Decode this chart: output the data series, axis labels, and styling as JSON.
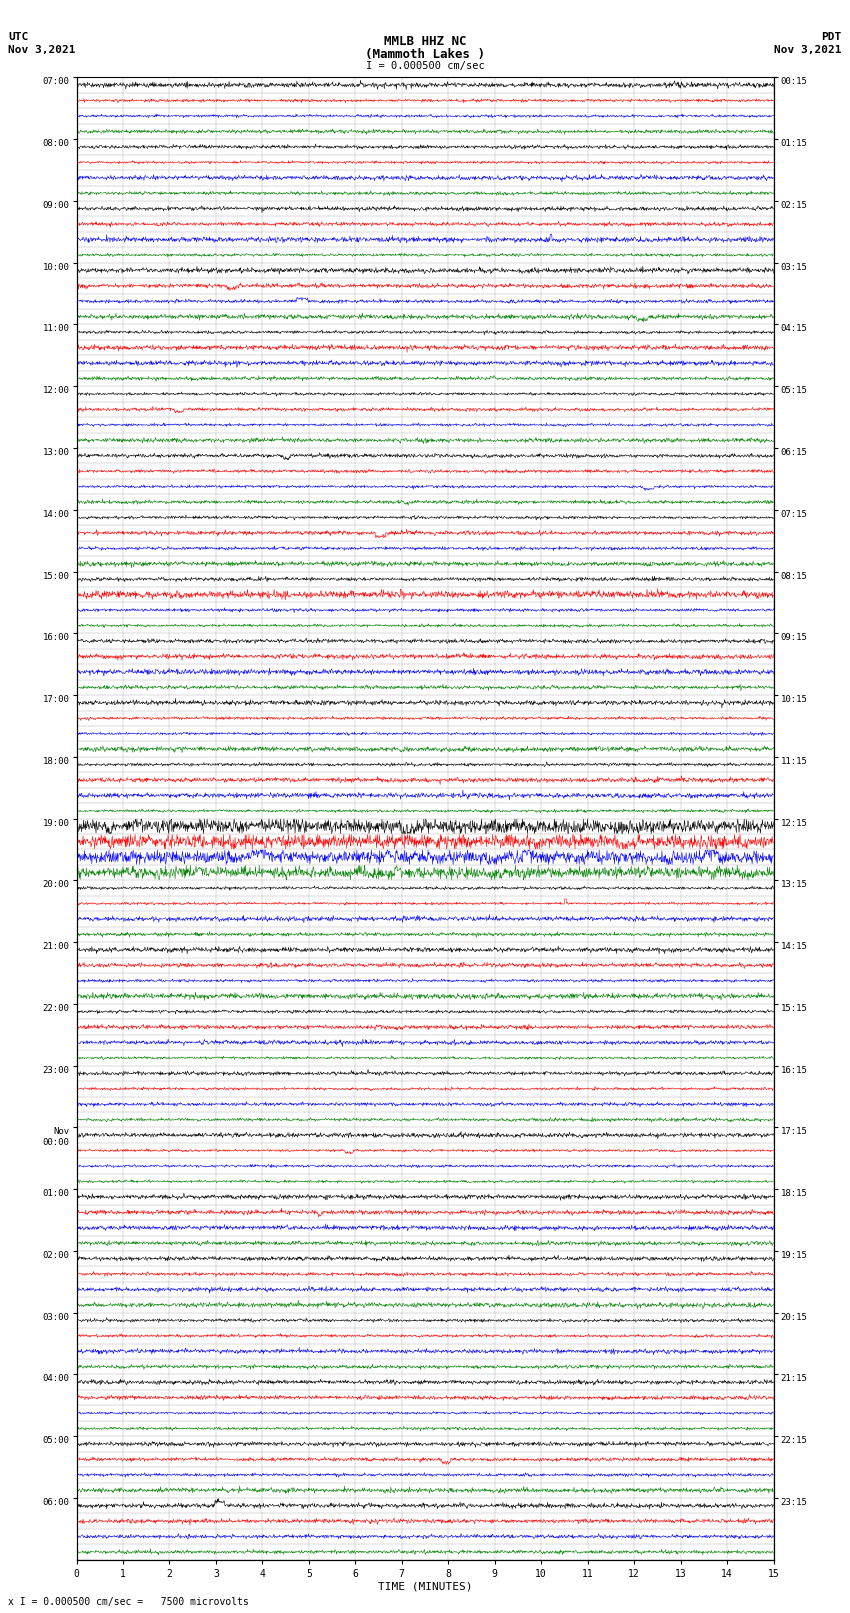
{
  "title_line1": "MMLB HHZ NC",
  "title_line2": "(Mammoth Lakes )",
  "title_line3": "I = 0.000500 cm/sec",
  "left_header_line1": "UTC",
  "left_header_line2": "Nov 3,2021",
  "right_header_line1": "PDT",
  "right_header_line2": "Nov 3,2021",
  "xlabel": "TIME (MINUTES)",
  "footer": "x I = 0.000500 cm/sec =   7500 microvolts",
  "utc_labels": [
    "07:00",
    "08:00",
    "09:00",
    "10:00",
    "11:00",
    "12:00",
    "13:00",
    "14:00",
    "15:00",
    "16:00",
    "17:00",
    "18:00",
    "19:00",
    "20:00",
    "21:00",
    "22:00",
    "23:00",
    "Nov\n00:00",
    "01:00",
    "02:00",
    "03:00",
    "04:00",
    "05:00",
    "06:00"
  ],
  "pdt_labels": [
    "00:15",
    "01:15",
    "02:15",
    "03:15",
    "04:15",
    "05:15",
    "06:15",
    "07:15",
    "08:15",
    "09:15",
    "10:15",
    "11:15",
    "12:15",
    "13:15",
    "14:15",
    "15:15",
    "16:15",
    "17:15",
    "18:15",
    "19:15",
    "20:15",
    "21:15",
    "22:15",
    "23:15"
  ],
  "n_hour_blocks": 24,
  "n_traces_per_block": 4,
  "minutes": 15,
  "colors": [
    "black",
    "red",
    "blue",
    "green"
  ],
  "noise_amplitude": 0.06,
  "background_color": "white",
  "grid_color": "#aaaaaa",
  "trace_linewidth": 0.4,
  "n_samples": 1500,
  "big_spike_trace": 10,
  "big_spike_time": 10.2,
  "big_spike_amp": 0.35,
  "big_spike_color": "blue",
  "event_traces": [
    48,
    49,
    50,
    51
  ],
  "event_amp_factor": 3.5,
  "event2_trace": 53,
  "event2_time": 10.5,
  "event2_amp": 0.3,
  "green14_trace": 33,
  "green14_amp_factor": 2.0,
  "red20_trace": 77,
  "red20_time": 10.5,
  "red20_amp": 0.3
}
